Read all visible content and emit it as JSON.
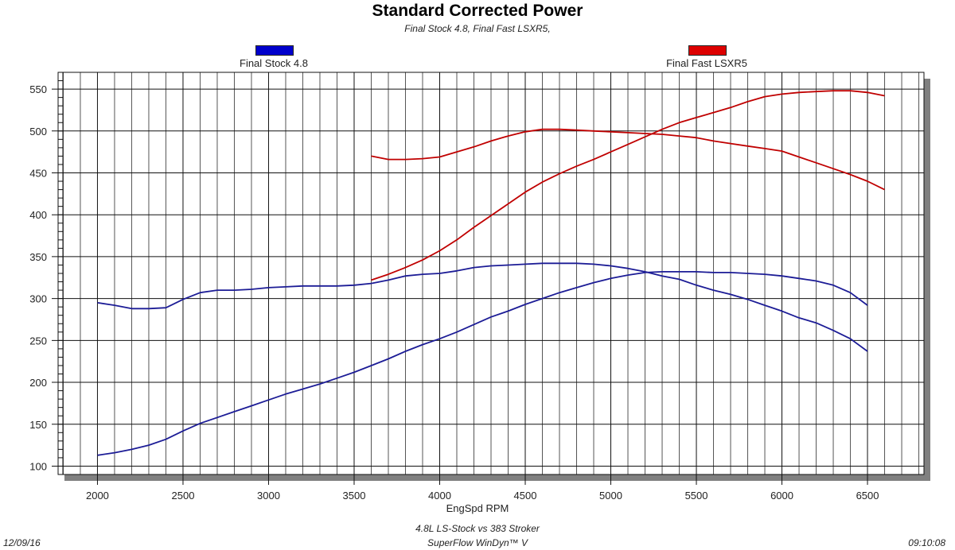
{
  "chart_data": {
    "type": "line",
    "title": "Standard Corrected Power",
    "subtitle": "Final Stock 4.8, Final Fast LSXR5,",
    "xlabel": "EngSpd RPM",
    "ylabel": "",
    "xlim": [
      1770,
      6830
    ],
    "ylim": [
      90,
      570
    ],
    "xticks": [
      2000,
      2500,
      3000,
      3500,
      4000,
      4500,
      5000,
      5500,
      6000,
      6500
    ],
    "yticks": [
      100,
      150,
      200,
      250,
      300,
      350,
      400,
      450,
      500,
      550
    ],
    "grid": true,
    "legend_placement": "top",
    "legend": [
      {
        "name": "Final Stock 4.8",
        "color": "#0000cc"
      },
      {
        "name": "Final Fast LSXR5",
        "color": "#dd0000"
      }
    ],
    "series": [
      {
        "name": "Final Stock 4.8",
        "color": "#1c1c96",
        "x": [
          2000,
          2100,
          2200,
          2300,
          2400,
          2500,
          2600,
          2700,
          2800,
          2900,
          3000,
          3100,
          3200,
          3300,
          3400,
          3500,
          3600,
          3700,
          3800,
          3900,
          4000,
          4100,
          4200,
          4300,
          4400,
          4500,
          4600,
          4700,
          4800,
          4900,
          5000,
          5100,
          5200,
          5300,
          5400,
          5500,
          5600,
          5700,
          5800,
          5900,
          6000,
          6100,
          6200,
          6300,
          6400,
          6500
        ],
        "values": [
          295,
          292,
          288,
          288,
          289,
          299,
          307,
          310,
          310,
          311,
          313,
          314,
          315,
          315,
          315,
          316,
          318,
          322,
          327,
          329,
          330,
          333,
          337,
          339,
          340,
          341,
          342,
          342,
          342,
          341,
          339,
          336,
          332,
          327,
          323,
          316,
          310,
          305,
          299,
          292,
          285,
          277,
          271,
          262,
          252,
          237
        ]
      },
      {
        "name": "Final Stock 4.8",
        "color": "#1c1c96",
        "x": [
          2000,
          2100,
          2200,
          2300,
          2400,
          2500,
          2600,
          2700,
          2800,
          2900,
          3000,
          3100,
          3200,
          3300,
          3400,
          3500,
          3600,
          3700,
          3800,
          3900,
          4000,
          4100,
          4200,
          4300,
          4400,
          4500,
          4600,
          4700,
          4800,
          4900,
          5000,
          5100,
          5200,
          5300,
          5400,
          5500,
          5600,
          5700,
          5800,
          5900,
          6000,
          6100,
          6200,
          6300,
          6400,
          6500
        ],
        "values": [
          113,
          116,
          120,
          125,
          132,
          142,
          151,
          158,
          165,
          172,
          179,
          186,
          192,
          198,
          205,
          212,
          220,
          228,
          237,
          245,
          252,
          260,
          269,
          278,
          285,
          293,
          300,
          307,
          313,
          319,
          324,
          328,
          331,
          332,
          332,
          332,
          331,
          331,
          330,
          329,
          327,
          324,
          321,
          316,
          307,
          292
        ]
      },
      {
        "name": "Final Fast LSXR5",
        "color": "#c00000",
        "x": [
          3600,
          3700,
          3800,
          3900,
          4000,
          4100,
          4200,
          4300,
          4400,
          4500,
          4600,
          4700,
          4800,
          4900,
          5000,
          5100,
          5200,
          5300,
          5400,
          5500,
          5600,
          5700,
          5800,
          5900,
          6000,
          6100,
          6200,
          6300,
          6400,
          6500,
          6600
        ],
        "values": [
          470,
          466,
          466,
          467,
          469,
          475,
          481,
          488,
          494,
          499,
          502,
          502,
          501,
          500,
          499,
          498,
          497,
          496,
          494,
          492,
          488,
          485,
          482,
          479,
          476,
          469,
          462,
          455,
          448,
          440,
          430
        ]
      },
      {
        "name": "Final Fast LSXR5",
        "color": "#c00000",
        "x": [
          3600,
          3700,
          3800,
          3900,
          4000,
          4100,
          4200,
          4300,
          4400,
          4500,
          4600,
          4700,
          4800,
          4900,
          5000,
          5100,
          5200,
          5300,
          5400,
          5500,
          5600,
          5700,
          5800,
          5900,
          6000,
          6100,
          6200,
          6300,
          6400,
          6500,
          6600
        ],
        "values": [
          322,
          329,
          337,
          346,
          357,
          370,
          385,
          399,
          413,
          427,
          439,
          449,
          458,
          466,
          475,
          484,
          493,
          502,
          510,
          516,
          522,
          528,
          535,
          541,
          544,
          546,
          547,
          548,
          548,
          546,
          542
        ]
      }
    ]
  },
  "footer": {
    "date": "12/09/16",
    "time": "09:10:08",
    "description": "4.8L LS-Stock vs 383 Stroker",
    "software": "SuperFlow WinDyn™ V"
  }
}
